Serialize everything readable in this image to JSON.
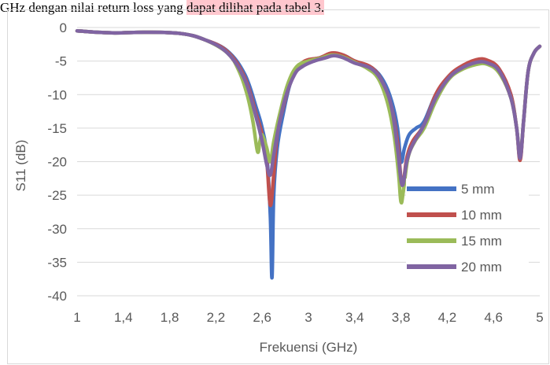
{
  "caption": {
    "prefix": "GHz dengan nilai return loss yang ",
    "highlight": "dapat dilihat pada tabel 3.",
    "highlight_color": "#ffc7ce"
  },
  "chart_data": {
    "type": "line",
    "title": "",
    "xlabel": "Frekuensi (GHz)",
    "ylabel": "S11 (dB)",
    "xlim": [
      1,
      5
    ],
    "ylim": [
      -40,
      0
    ],
    "x_ticks": [
      "1",
      "1,4",
      "1,8",
      "2,2",
      "2,6",
      "3",
      "3,4",
      "3,8",
      "4,2",
      "4,6",
      "5"
    ],
    "y_ticks": [
      "0",
      "-5",
      "-10",
      "-15",
      "-20",
      "-25",
      "-30",
      "-35",
      "-40"
    ],
    "grid": true,
    "legend_position": "right",
    "series": [
      {
        "name": "5 mm",
        "color": "#4472c4",
        "points": [
          [
            1,
            -0.5
          ],
          [
            1.3,
            -0.8
          ],
          [
            1.6,
            -0.7
          ],
          [
            1.9,
            -0.9
          ],
          [
            2.1,
            -1.8
          ],
          [
            2.3,
            -3.5
          ],
          [
            2.45,
            -7
          ],
          [
            2.55,
            -12
          ],
          [
            2.6,
            -15
          ],
          [
            2.64,
            -19
          ],
          [
            2.67,
            -28
          ],
          [
            2.685,
            -37.3
          ],
          [
            2.7,
            -25
          ],
          [
            2.73,
            -18
          ],
          [
            2.78,
            -13
          ],
          [
            2.85,
            -8
          ],
          [
            2.95,
            -5.3
          ],
          [
            3.1,
            -4.5
          ],
          [
            3.2,
            -3.9
          ],
          [
            3.3,
            -4.1
          ],
          [
            3.4,
            -5
          ],
          [
            3.55,
            -6
          ],
          [
            3.65,
            -8
          ],
          [
            3.72,
            -11
          ],
          [
            3.77,
            -15
          ],
          [
            3.8,
            -20
          ],
          [
            3.83,
            -18
          ],
          [
            3.87,
            -16
          ],
          [
            3.93,
            -15
          ],
          [
            4.0,
            -14
          ],
          [
            4.1,
            -10
          ],
          [
            4.2,
            -7.5
          ],
          [
            4.3,
            -6.2
          ],
          [
            4.45,
            -5.2
          ],
          [
            4.55,
            -5.2
          ],
          [
            4.65,
            -6.5
          ],
          [
            4.75,
            -10
          ],
          [
            4.8,
            -15
          ],
          [
            4.83,
            -19.5
          ],
          [
            4.86,
            -14
          ],
          [
            4.9,
            -6.5
          ],
          [
            4.95,
            -3.8
          ],
          [
            5,
            -2.8
          ]
        ]
      },
      {
        "name": "10 mm",
        "color": "#c0504d",
        "points": [
          [
            1,
            -0.5
          ],
          [
            1.3,
            -0.8
          ],
          [
            1.6,
            -0.7
          ],
          [
            1.9,
            -0.9
          ],
          [
            2.1,
            -1.8
          ],
          [
            2.3,
            -3.6
          ],
          [
            2.45,
            -7.5
          ],
          [
            2.55,
            -13
          ],
          [
            2.6,
            -16
          ],
          [
            2.64,
            -20
          ],
          [
            2.67,
            -26.5
          ],
          [
            2.7,
            -22
          ],
          [
            2.73,
            -16
          ],
          [
            2.78,
            -12
          ],
          [
            2.85,
            -8
          ],
          [
            2.95,
            -5.2
          ],
          [
            3.1,
            -4.5
          ],
          [
            3.2,
            -3.8
          ],
          [
            3.3,
            -4.1
          ],
          [
            3.4,
            -5
          ],
          [
            3.55,
            -6
          ],
          [
            3.65,
            -8.5
          ],
          [
            3.72,
            -12
          ],
          [
            3.77,
            -17
          ],
          [
            3.81,
            -23.5
          ],
          [
            3.85,
            -19.5
          ],
          [
            3.9,
            -17
          ],
          [
            4.0,
            -14.5
          ],
          [
            4.1,
            -10
          ],
          [
            4.2,
            -7.5
          ],
          [
            4.3,
            -6
          ],
          [
            4.45,
            -4.8
          ],
          [
            4.55,
            -4.9
          ],
          [
            4.65,
            -6.2
          ],
          [
            4.75,
            -10
          ],
          [
            4.8,
            -15
          ],
          [
            4.83,
            -19.8
          ],
          [
            4.86,
            -14
          ],
          [
            4.9,
            -6.5
          ],
          [
            4.95,
            -3.8
          ],
          [
            5,
            -2.8
          ]
        ]
      },
      {
        "name": "15 mm",
        "color": "#9bbb59",
        "points": [
          [
            1,
            -0.5
          ],
          [
            1.3,
            -0.8
          ],
          [
            1.6,
            -0.7
          ],
          [
            1.9,
            -0.9
          ],
          [
            2.1,
            -1.8
          ],
          [
            2.3,
            -3.8
          ],
          [
            2.4,
            -6.5
          ],
          [
            2.47,
            -10
          ],
          [
            2.52,
            -14
          ],
          [
            2.56,
            -18.5
          ],
          [
            2.58,
            -17
          ],
          [
            2.6,
            -16
          ],
          [
            2.64,
            -18
          ],
          [
            2.67,
            -20
          ],
          [
            2.7,
            -17
          ],
          [
            2.75,
            -13
          ],
          [
            2.82,
            -8.5
          ],
          [
            2.9,
            -5.8
          ],
          [
            3.0,
            -5
          ],
          [
            3.1,
            -4.6
          ],
          [
            3.2,
            -4.1
          ],
          [
            3.3,
            -4.4
          ],
          [
            3.4,
            -5.2
          ],
          [
            3.5,
            -6
          ],
          [
            3.6,
            -7.5
          ],
          [
            3.68,
            -11
          ],
          [
            3.74,
            -16
          ],
          [
            3.78,
            -22
          ],
          [
            3.8,
            -26
          ],
          [
            3.82,
            -24.5
          ],
          [
            3.86,
            -19.5
          ],
          [
            3.92,
            -17
          ],
          [
            4.0,
            -15
          ],
          [
            4.1,
            -11
          ],
          [
            4.2,
            -8
          ],
          [
            4.3,
            -6.5
          ],
          [
            4.45,
            -5.5
          ],
          [
            4.55,
            -5.5
          ],
          [
            4.65,
            -6.8
          ],
          [
            4.75,
            -10.5
          ],
          [
            4.8,
            -15
          ],
          [
            4.83,
            -19.3
          ],
          [
            4.86,
            -14
          ],
          [
            4.9,
            -6.5
          ],
          [
            4.95,
            -3.8
          ],
          [
            5,
            -2.8
          ]
        ]
      },
      {
        "name": "20 mm",
        "color": "#8064a2",
        "points": [
          [
            1,
            -0.5
          ],
          [
            1.3,
            -0.8
          ],
          [
            1.6,
            -0.7
          ],
          [
            1.9,
            -0.9
          ],
          [
            2.1,
            -1.8
          ],
          [
            2.3,
            -3.8
          ],
          [
            2.45,
            -7.8
          ],
          [
            2.55,
            -13.5
          ],
          [
            2.6,
            -17
          ],
          [
            2.64,
            -20.5
          ],
          [
            2.67,
            -22
          ],
          [
            2.7,
            -19
          ],
          [
            2.74,
            -15
          ],
          [
            2.8,
            -10.5
          ],
          [
            2.88,
            -7
          ],
          [
            2.95,
            -5.8
          ],
          [
            3.05,
            -5
          ],
          [
            3.15,
            -4.5
          ],
          [
            3.22,
            -4.2
          ],
          [
            3.3,
            -4.5
          ],
          [
            3.4,
            -5.3
          ],
          [
            3.55,
            -6.2
          ],
          [
            3.65,
            -8.5
          ],
          [
            3.72,
            -12
          ],
          [
            3.77,
            -18
          ],
          [
            3.81,
            -23.5
          ],
          [
            3.85,
            -20
          ],
          [
            3.9,
            -17.5
          ],
          [
            4.0,
            -14.5
          ],
          [
            4.1,
            -10.5
          ],
          [
            4.2,
            -7.8
          ],
          [
            4.3,
            -6.3
          ],
          [
            4.45,
            -5.2
          ],
          [
            4.55,
            -5.3
          ],
          [
            4.65,
            -6.5
          ],
          [
            4.75,
            -10.5
          ],
          [
            4.8,
            -15
          ],
          [
            4.83,
            -19.5
          ],
          [
            4.86,
            -14
          ],
          [
            4.9,
            -6.5
          ],
          [
            4.95,
            -3.8
          ],
          [
            5,
            -2.8
          ]
        ]
      }
    ]
  }
}
